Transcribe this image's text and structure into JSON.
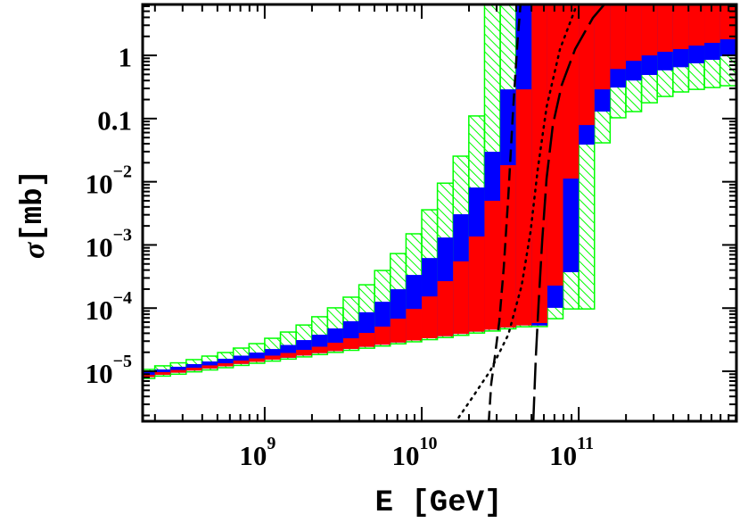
{
  "chart_data": {
    "type": "step-band",
    "xlabel": "E [GeV]",
    "ylabel": [
      "σ",
      "[mb]"
    ],
    "xlog": true,
    "ylog": true,
    "xlim": [
      167000000.0,
      1010000000000.0
    ],
    "ylim": [
      1.62e-06,
      6.4
    ],
    "xticks": [
      {
        "value": 1000000000.0,
        "label": "10",
        "exponent": "9"
      },
      {
        "value": 10000000000.0,
        "label": "10",
        "exponent": "10"
      },
      {
        "value": 100000000000.0,
        "label": "10",
        "exponent": "11"
      }
    ],
    "yticks": [
      {
        "value": 1e-05,
        "label": "10",
        "exponent": "−5"
      },
      {
        "value": 0.0001,
        "label": "10",
        "exponent": "−4"
      },
      {
        "value": 0.001,
        "label": "10",
        "exponent": "−3"
      },
      {
        "value": 0.01,
        "label": "10",
        "exponent": "−2"
      },
      0.1,
      1
    ],
    "xminorticks": [
      200000000.0,
      300000000.0,
      400000000.0,
      500000000.0,
      600000000.0,
      700000000.0,
      800000000.0,
      900000000.0,
      2000000000.0,
      3000000000.0,
      4000000000.0,
      5000000000.0,
      6000000000.0,
      7000000000.0,
      8000000000.0,
      9000000000.0,
      20000000000.0,
      30000000000.0,
      40000000000.0,
      50000000000.0,
      60000000000.0,
      70000000000.0,
      80000000000.0,
      90000000000.0,
      200000000000.0,
      300000000000.0,
      400000000000.0,
      500000000000.0,
      600000000000.0,
      700000000000.0,
      800000000000.0,
      900000000000.0,
      1000000000000.0
    ],
    "yminorticks": [
      2e-06,
      3e-06,
      4e-06,
      5e-06,
      6e-06,
      7e-06,
      8e-06,
      9e-06,
      2e-05,
      3e-05,
      4e-05,
      5e-05,
      6e-05,
      7e-05,
      8e-05,
      9e-05,
      0.0002,
      0.0003,
      0.0004,
      0.0005,
      0.0006,
      0.0007,
      0.0008,
      0.0009,
      0.002,
      0.003,
      0.004,
      0.005,
      0.006,
      0.007,
      0.008,
      0.009,
      0.02,
      0.03,
      0.04,
      0.05,
      0.06,
      0.07,
      0.08,
      0.09,
      0.2,
      0.3,
      0.4,
      0.5,
      0.6,
      0.7,
      0.8,
      0.9,
      2,
      3,
      4,
      5,
      6
    ],
    "bins": [
      158500000.0,
      199500000.0,
      251200000.0,
      316200000.0,
      398100000.0,
      501200000.0,
      631000000.0,
      794300000.0,
      1000000000.0,
      1259000000.0,
      1585000000.0,
      1995000000.0,
      2512000000.0,
      3162000000.0,
      3981000000.0,
      5012000000.0,
      6310000000.0,
      7943000000.0,
      10000000000.0,
      12590000000.0,
      15850000000.0,
      19950000000.0,
      25120000000.0,
      31620000000.0,
      39810000000.0,
      50120000000.0,
      63100000000.0,
      79430000000.0,
      100000000000.0,
      125900000000.0,
      158500000000.0,
      199500000000.0,
      251200000000.0,
      316200000000.0,
      398100000000.0,
      501200000000.0,
      631000000000.0,
      794300000000.0,
      1000000000000.0
    ],
    "bands": [
      {
        "color": "#00ff00",
        "hatch": true,
        "lower": [
          7.7e-06,
          8.4e-06,
          9e-06,
          9.8e-06,
          1.05e-05,
          1.14e-05,
          1.24e-05,
          1.34e-05,
          1.45e-05,
          1.56e-05,
          1.69e-05,
          1.84e-05,
          1.99e-05,
          2.15e-05,
          2.32e-05,
          2.51e-05,
          2.72e-05,
          2.93e-05,
          3.17e-05,
          3.42e-05,
          3.71e-05,
          4.03e-05,
          4.34e-05,
          4.7e-05,
          5.06e-05,
          5.1e-05,
          6.8e-05,
          9.7e-05,
          9.7e-05,
          0.0413,
          0.103,
          0.129,
          0.178,
          0.224,
          0.264,
          0.29,
          0.31,
          0.331
        ],
        "upper": [
          1.07e-05,
          1.22e-05,
          1.36e-05,
          1.53e-05,
          1.74e-05,
          1.98e-05,
          2.33e-05,
          2.74e-05,
          3.33e-05,
          4.18e-05,
          5.4e-05,
          7.3e-05,
          0.000101,
          0.000149,
          0.000234,
          0.000394,
          0.00073,
          0.0015,
          0.0036,
          0.0095,
          0.0254,
          0.11,
          10,
          10,
          10,
          10,
          10,
          10,
          10,
          10,
          10,
          10,
          10,
          10,
          10,
          10,
          10,
          10
        ]
      },
      {
        "color": "#0000ff",
        "hatch": false,
        "lower": [
          8.1e-06,
          8.8e-06,
          9.5e-06,
          1.03e-05,
          1.11e-05,
          1.2e-05,
          1.31e-05,
          1.41e-05,
          1.53e-05,
          1.64e-05,
          1.78e-05,
          1.94e-05,
          2.09e-05,
          2.26e-05,
          2.44e-05,
          2.64e-05,
          2.86e-05,
          3.08e-05,
          3.34e-05,
          3.6e-05,
          3.91e-05,
          4.24e-05,
          4.57e-05,
          4.95e-05,
          5.33e-05,
          5.3e-05,
          0.000101,
          0.00037,
          0.0387,
          0.129,
          0.31,
          0.4,
          0.49,
          0.58,
          0.65,
          0.75,
          0.85,
          0.97
        ],
        "upper": [
          9.7e-06,
          1.07e-05,
          1.18e-05,
          1.3e-05,
          1.43e-05,
          1.58e-05,
          1.77e-05,
          1.98e-05,
          2.25e-05,
          2.61e-05,
          3.12e-05,
          3.79e-05,
          4.77e-05,
          6.2e-05,
          8.6e-05,
          0.000126,
          0.000199,
          0.000335,
          0.00062,
          0.00131,
          0.00306,
          0.0081,
          0.0298,
          0.29,
          10,
          10,
          10,
          10,
          10,
          10,
          10,
          10,
          10,
          10,
          10,
          10,
          10,
          10
        ]
      },
      {
        "color": "#ff0000",
        "hatch": false,
        "lower": [
          8.1e-06,
          8.8e-06,
          9.5e-06,
          1.03e-05,
          1.11e-05,
          1.2e-05,
          1.31e-05,
          1.41e-05,
          1.53e-05,
          1.64e-05,
          1.78e-05,
          1.94e-05,
          2.09e-05,
          2.26e-05,
          2.44e-05,
          2.64e-05,
          2.86e-05,
          3.08e-05,
          3.34e-05,
          3.6e-05,
          3.91e-05,
          4.24e-05,
          4.57e-05,
          4.95e-05,
          5.33e-05,
          5.8e-05,
          0.000227,
          0.0112,
          0.079,
          0.29,
          0.61,
          0.82,
          1.0,
          1.14,
          1.26,
          1.43,
          1.58,
          1.8
        ],
        "upper": [
          8.8e-06,
          9.7e-06,
          1.05e-05,
          1.14e-05,
          1.24e-05,
          1.34e-05,
          1.48e-05,
          1.6e-05,
          1.77e-05,
          1.95e-05,
          2.18e-05,
          2.45e-05,
          2.83e-05,
          3.33e-05,
          4.05e-05,
          5.1e-05,
          6.8e-05,
          9.7e-05,
          0.000153,
          0.000267,
          0.00055,
          0.00136,
          0.005,
          0.0183,
          0.29,
          10,
          10,
          10,
          10,
          10,
          10,
          10,
          10,
          10,
          10,
          10,
          10,
          10
        ]
      }
    ],
    "lines": [
      {
        "color": "#000000",
        "style": "dashed",
        "x": [
          26700000000.0,
          27700000000.0,
          29200000000.0,
          31200000000.0,
          33300000000.0,
          35600000000.0,
          38000000000.0,
          40600000000.0,
          42700000000.0
        ],
        "y": [
          1.5e-06,
          6.3e-06,
          1.68e-05,
          6.2e-05,
          0.000435,
          0.0059,
          0.11,
          1.48,
          7
        ]
      },
      {
        "color": "#000000",
        "style": "dotted",
        "x": [
          16200000000.0,
          21100000000.0,
          27400000000.0,
          35600000000.0,
          43300000000.0,
          49300000000.0,
          54800000000.0,
          62400000000.0,
          76000000000.0,
          98700000000.0
        ],
        "y": [
          1.5e-06,
          3.9e-06,
          1.03e-05,
          3.8e-05,
          0.000227,
          0.0016,
          0.0156,
          0.152,
          1.26,
          7
        ]
      },
      {
        "color": "#000000",
        "style": "longdash",
        "x": [
          51300000000.0,
          53300000000.0,
          55500000000.0,
          58500000000.0,
          62400000000.0,
          68400000000.0,
          78000000000.0,
          94900000000.0,
          123000000000.0,
          150000000000.0
        ],
        "y": [
          1.5e-06,
          1.68e-05,
          0.000118,
          0.00115,
          0.0112,
          0.079,
          0.342,
          1.26,
          3.92,
          7
        ]
      }
    ]
  }
}
